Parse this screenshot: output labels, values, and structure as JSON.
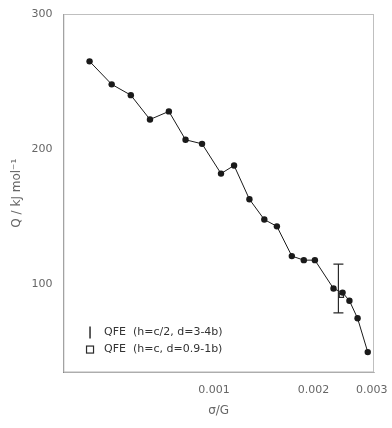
{
  "chart_data": {
    "type": "scatter",
    "xlabel": "σ/G",
    "ylabel": "Q / kJ mol⁻¹",
    "log": "x",
    "xlim": [
      0.00035,
      0.00305
    ],
    "xticks": [
      0.001,
      0.002,
      0.003
    ],
    "ylim": [
      35,
      300
    ],
    "yticks": [
      100,
      200,
      300
    ],
    "grid": false,
    "legend": "lower left",
    "series": [
      {
        "x": [
          0.00042,
          0.00049,
          0.00056,
          0.00064,
          0.00073,
          0.00082,
          0.00092,
          0.00105,
          0.00115,
          0.00128,
          0.00142,
          0.00155,
          0.00172,
          0.00187,
          0.00202,
          0.0023,
          0.00245,
          0.00257,
          0.00272,
          0.00292
        ],
        "values": [
          265,
          248,
          240,
          222,
          228,
          207,
          204,
          182,
          188,
          163,
          148,
          143,
          121,
          118,
          118,
          97,
          94,
          88,
          75,
          50
        ],
        "color": "#1a1a1a",
        "marker": "circle",
        "line_style": "solid"
      },
      {
        "name": "QFE  (h=c/2, d=3-4b)",
        "x": [
          0.00238
        ],
        "values": [
          97
        ],
        "error": [
          18
        ],
        "color": "#2a2a2a",
        "marker": "errorbar"
      },
      {
        "name": "QFE  (h=c, d=0.9-1b)",
        "x": [
          0.00243
        ],
        "values": [
          92
        ],
        "color": "#2a2a2a",
        "marker": "square"
      }
    ]
  }
}
